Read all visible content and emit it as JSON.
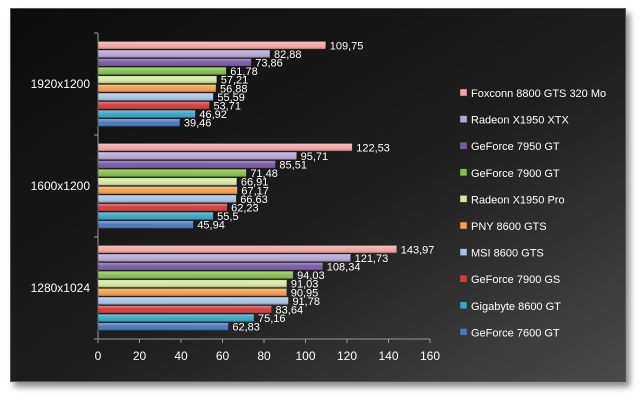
{
  "chart_data": {
    "type": "bar",
    "orientation": "horizontal",
    "categories": [
      "1920x1200",
      "1600x1200",
      "1280x1024"
    ],
    "xlim": [
      0,
      160
    ],
    "x_ticks": [
      "0",
      "20",
      "40",
      "60",
      "80",
      "100",
      "120",
      "140",
      "160"
    ],
    "grid": false,
    "legend_position": "right",
    "series": [
      {
        "name": "Foxconn 8800 GTS 320 Mo",
        "color": "#f4a6a6",
        "values": [
          109.75,
          122.53,
          143.97
        ],
        "labels": [
          "109,75",
          "122,53",
          "143,97"
        ]
      },
      {
        "name": "Radeon X1950 XTX",
        "color": "#b7a7d9",
        "values": [
          82.88,
          95.71,
          121.73
        ],
        "labels": [
          "82,88",
          "95,71",
          "121,73"
        ]
      },
      {
        "name": "GeForce 7950 GT",
        "color": "#7a5aa6",
        "values": [
          73.86,
          85.51,
          108.34
        ],
        "labels": [
          "73,86",
          "85,51",
          "108,34"
        ]
      },
      {
        "name": "GeForce 7900 GT",
        "color": "#86c04a",
        "values": [
          61.78,
          71.48,
          94.03
        ],
        "labels": [
          "61,78",
          "71,48",
          "94,03"
        ]
      },
      {
        "name": "Radeon X1950 Pro",
        "color": "#d6e9a2",
        "values": [
          57.21,
          66.91,
          91.03
        ],
        "labels": [
          "57,21",
          "66,91",
          "91,03"
        ]
      },
      {
        "name": "PNY 8600 GTS",
        "color": "#f6a04c",
        "values": [
          56.88,
          67.17,
          90.95
        ],
        "labels": [
          "56,88",
          "67,17",
          "90,95"
        ]
      },
      {
        "name": "MSI 8600 GTS",
        "color": "#a9c3e8",
        "values": [
          55.59,
          66.63,
          91.78
        ],
        "labels": [
          "55,59",
          "66,63",
          "91,78"
        ]
      },
      {
        "name": "GeForce 7900 GS",
        "color": "#d93a3a",
        "values": [
          53.71,
          62.23,
          83.64
        ],
        "labels": [
          "53,71",
          "62,23",
          "83,64"
        ]
      },
      {
        "name": "Gigabyte 8600 GT",
        "color": "#35a8c8",
        "values": [
          46.92,
          55.5,
          75.16
        ],
        "labels": [
          "46,92",
          "55,5",
          "75,16"
        ]
      },
      {
        "name": "GeForce 7600 GT",
        "color": "#4a78c0",
        "values": [
          39.46,
          45.94,
          62.83
        ],
        "labels": [
          "39,46",
          "45,94",
          "62,83"
        ]
      }
    ]
  }
}
